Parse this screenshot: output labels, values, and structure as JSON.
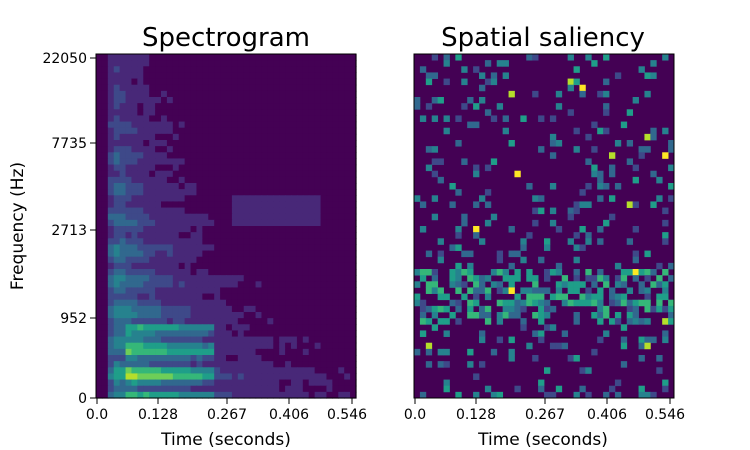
{
  "chart_data": [
    {
      "type": "heatmap",
      "title": "Spectrogram",
      "xlabel": "Time (seconds)",
      "ylabel": "Frequency (Hz)",
      "xticks": [
        "0.0",
        "0.128",
        "0.267",
        "0.406",
        "0.546"
      ],
      "yticks": [
        "0",
        "952",
        "2713",
        "7735",
        "22050"
      ],
      "colormap": "viridis",
      "grid": false
    },
    {
      "type": "heatmap",
      "title": "Spatial saliency",
      "xlabel": "Time (seconds)",
      "xticks": [
        "0.0",
        "0.128",
        "0.267",
        "0.406",
        "0.546"
      ],
      "colormap": "viridis",
      "grid": false
    }
  ],
  "colors": {
    "viridis": [
      "#440154",
      "#482878",
      "#3e4989",
      "#31688e",
      "#26828e",
      "#1f9e89",
      "#35b779",
      "#6ece58",
      "#b5de2b",
      "#fde725"
    ]
  }
}
